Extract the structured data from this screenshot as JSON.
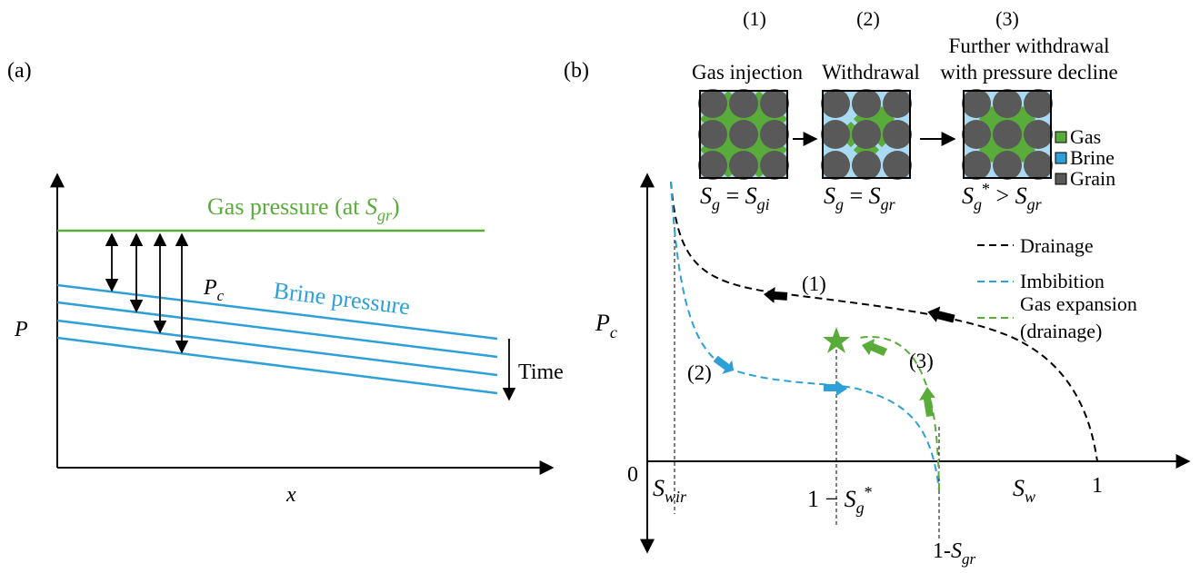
{
  "panel_a": {
    "label": "(a)",
    "gas_pressure": [
      "Gas pressure (at ",
      "S",
      "gr",
      ")"
    ],
    "pc": [
      "P",
      "c"
    ],
    "brine_pressure": "Brine pressure",
    "y_axis": "P",
    "time": "Time",
    "x_axis": "x"
  },
  "panel_b": {
    "label": "(b)",
    "steps": [
      {
        "number": "(1)",
        "title": [
          "Gas injection"
        ],
        "saturation": [
          "S",
          "g",
          " = ",
          "S",
          "gi"
        ]
      },
      {
        "number": "(2)",
        "title": [
          "Withdrawal"
        ],
        "saturation": [
          "S",
          "g",
          " = ",
          "S",
          "gr"
        ]
      },
      {
        "number": "(3)",
        "title": [
          "Further withdrawal",
          "with pressure decline"
        ],
        "saturation": [
          "S",
          "g",
          "*",
          " > ",
          "S",
          "gr"
        ]
      }
    ],
    "legend": [
      "Gas",
      "Brine",
      "Grain"
    ],
    "curves": {
      "drainage": "Drainage",
      "imbibition": "Imbibition",
      "gas_expansion": [
        "Gas expansion",
        "(drainage)"
      ]
    },
    "curve_labels": [
      "(1)",
      "(2)",
      "(3)"
    ],
    "y_axis": [
      "P",
      "c"
    ],
    "axis_labels": {
      "origin": "0",
      "s_wir": [
        "S",
        "wir"
      ],
      "one_minus_sg": [
        "1 − ",
        "S",
        "g",
        "*"
      ],
      "s_w": [
        "S",
        "w"
      ],
      "one": "1",
      "one_minus_sgr": [
        "1-",
        "S",
        "gr"
      ]
    }
  }
}
